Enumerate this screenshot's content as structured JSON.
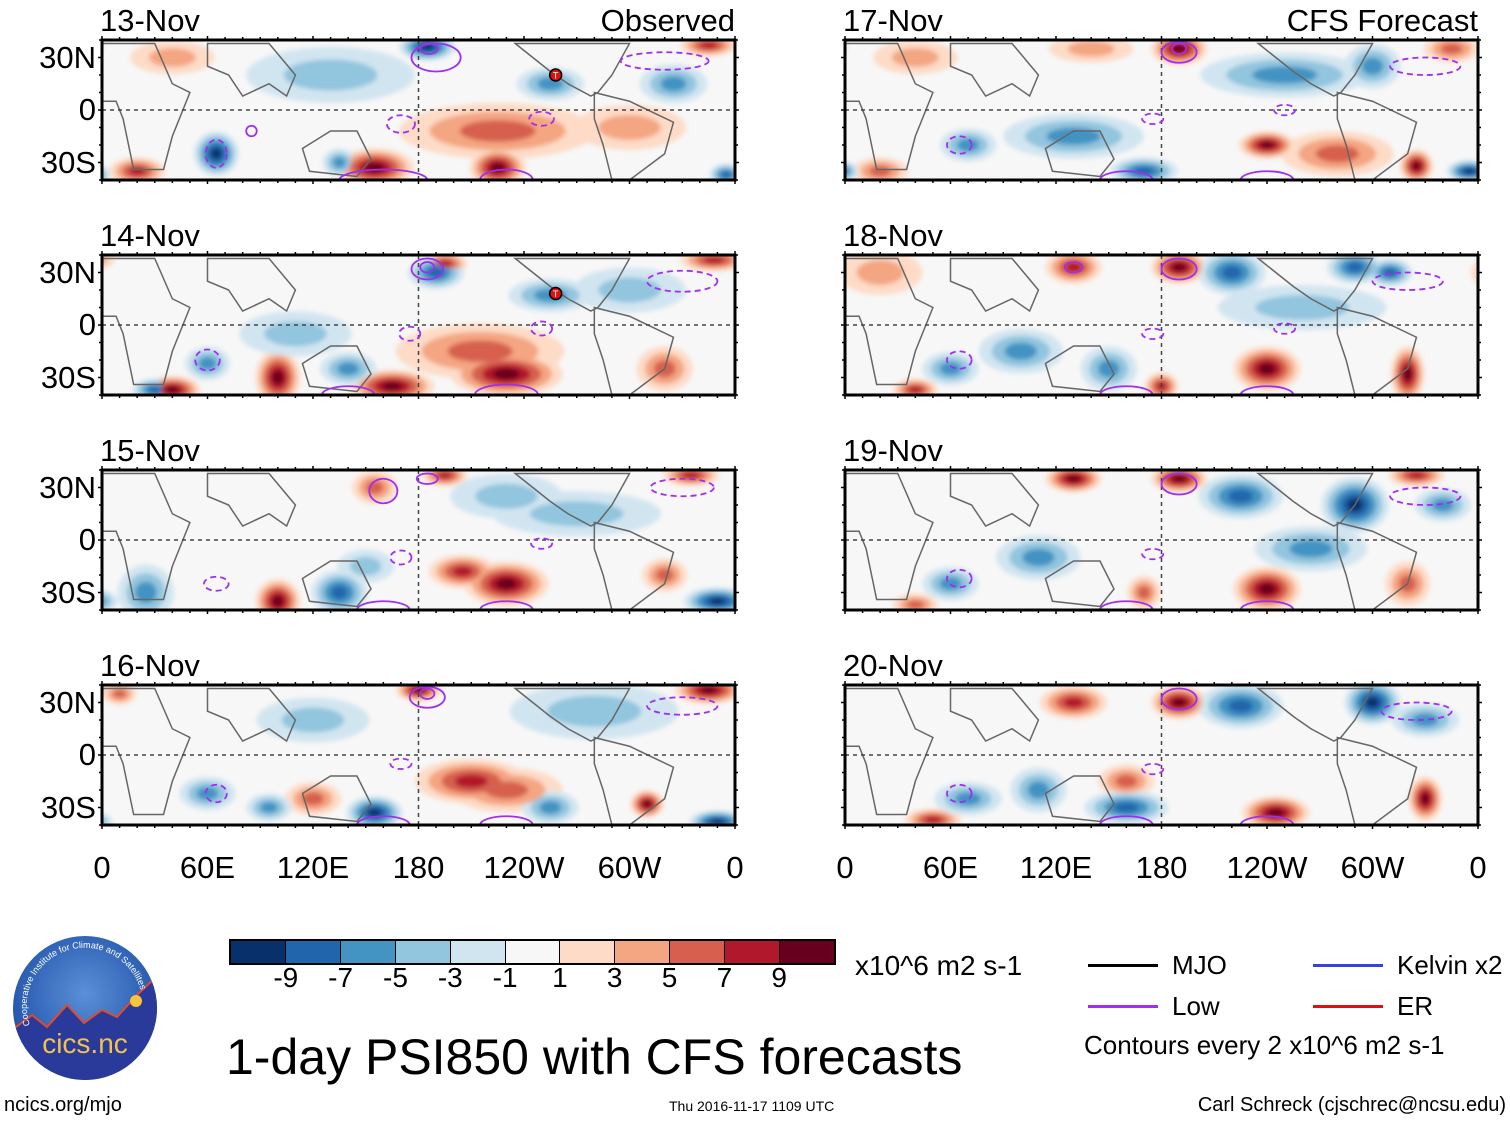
{
  "panels": [
    {
      "title": "13-Nov",
      "label": "Observed",
      "col": 0,
      "row": 0,
      "storm": [
        258,
        20
      ],
      "blobs": [
        [
          155,
          -33,
          9,
          14,
          7
        ],
        [
          225,
          -33,
          9,
          10,
          7
        ],
        [
          225,
          -12,
          5,
          35,
          10
        ],
        [
          300,
          -10,
          3,
          20,
          8
        ],
        [
          345,
          37,
          7,
          10,
          4
        ],
        [
          40,
          30,
          3,
          15,
          6
        ],
        [
          20,
          -35,
          7,
          10,
          5
        ],
        [
          65,
          -25,
          -9,
          8,
          8
        ],
        [
          185,
          36,
          -9,
          10,
          5
        ],
        [
          255,
          15,
          -5,
          12,
          6
        ],
        [
          325,
          15,
          -5,
          12,
          7
        ],
        [
          135,
          -30,
          -5,
          6,
          5
        ],
        [
          130,
          20,
          -3,
          30,
          10
        ],
        [
          355,
          -37,
          -7,
          6,
          4
        ]
      ],
      "contours": [
        [
          190,
          30,
          14,
          8,
          0
        ],
        [
          186,
          35,
          5,
          3,
          0
        ],
        [
          85,
          -12,
          3,
          3,
          0
        ],
        [
          65,
          -25,
          6,
          8,
          1
        ],
        [
          170,
          -8,
          8,
          5,
          1
        ],
        [
          250,
          -5,
          7,
          4,
          1
        ],
        [
          320,
          28,
          25,
          5,
          1
        ],
        [
          160,
          -40,
          25,
          6,
          0
        ],
        [
          230,
          -40,
          15,
          6,
          0
        ]
      ]
    },
    {
      "title": "14-Nov",
      "label": "",
      "col": 0,
      "row": 1,
      "storm": [
        258,
        18
      ],
      "blobs": [
        [
          40,
          -37,
          9,
          10,
          5
        ],
        [
          100,
          -30,
          9,
          8,
          10
        ],
        [
          165,
          -35,
          9,
          15,
          6
        ],
        [
          230,
          -28,
          9,
          20,
          8
        ],
        [
          215,
          -15,
          5,
          30,
          10
        ],
        [
          320,
          -25,
          5,
          10,
          8
        ],
        [
          348,
          37,
          7,
          12,
          4
        ],
        [
          195,
          35,
          7,
          8,
          4
        ],
        [
          60,
          -22,
          -5,
          8,
          6
        ],
        [
          30,
          -37,
          -7,
          8,
          4
        ],
        [
          190,
          30,
          -7,
          10,
          6
        ],
        [
          255,
          17,
          -5,
          15,
          6
        ],
        [
          300,
          20,
          -3,
          20,
          8
        ],
        [
          140,
          -25,
          -5,
          10,
          6
        ],
        [
          110,
          -5,
          -3,
          20,
          8
        ]
      ],
      "contours": [
        [
          185,
          32,
          9,
          6,
          0
        ],
        [
          185,
          33,
          4,
          3,
          0
        ],
        [
          60,
          -20,
          7,
          6,
          1
        ],
        [
          175,
          -5,
          6,
          4,
          1
        ],
        [
          250,
          -2,
          6,
          4,
          1
        ],
        [
          330,
          25,
          20,
          6,
          1
        ],
        [
          140,
          -40,
          15,
          5,
          0
        ],
        [
          230,
          -40,
          18,
          6,
          0
        ]
      ]
    },
    {
      "title": "15-Nov",
      "label": "",
      "col": 0,
      "row": 2,
      "blobs": [
        [
          100,
          -35,
          9,
          8,
          8
        ],
        [
          230,
          -25,
          9,
          15,
          8
        ],
        [
          205,
          -18,
          7,
          12,
          6
        ],
        [
          320,
          -20,
          5,
          8,
          6
        ],
        [
          195,
          37,
          7,
          8,
          4
        ],
        [
          335,
          37,
          7,
          10,
          4
        ],
        [
          155,
          30,
          5,
          8,
          6
        ],
        [
          135,
          -30,
          -7,
          10,
          8
        ],
        [
          350,
          -35,
          -9,
          12,
          5
        ],
        [
          25,
          -30,
          -5,
          10,
          10
        ],
        [
          270,
          15,
          -3,
          30,
          8
        ],
        [
          150,
          -15,
          -3,
          10,
          6
        ],
        [
          230,
          25,
          -3,
          20,
          8
        ]
      ],
      "contours": [
        [
          160,
          28,
          8,
          7,
          0
        ],
        [
          185,
          35,
          6,
          3,
          0
        ],
        [
          65,
          -25,
          7,
          4,
          1
        ],
        [
          170,
          -10,
          6,
          4,
          1
        ],
        [
          250,
          -2,
          6,
          3,
          1
        ],
        [
          330,
          30,
          18,
          5,
          1
        ],
        [
          160,
          -40,
          15,
          5,
          0
        ],
        [
          230,
          -40,
          15,
          5,
          0
        ]
      ]
    },
    {
      "title": "16-Nov",
      "label": "",
      "col": 0,
      "row": 3,
      "blobs": [
        [
          180,
          37,
          9,
          8,
          4
        ],
        [
          345,
          37,
          9,
          12,
          5
        ],
        [
          210,
          -15,
          7,
          20,
          8
        ],
        [
          310,
          -28,
          9,
          6,
          5
        ],
        [
          120,
          -25,
          5,
          10,
          6
        ],
        [
          10,
          35,
          5,
          6,
          4
        ],
        [
          230,
          -20,
          5,
          20,
          8
        ],
        [
          155,
          -33,
          -9,
          10,
          6
        ],
        [
          350,
          -38,
          -9,
          10,
          4
        ],
        [
          60,
          -22,
          -5,
          10,
          6
        ],
        [
          95,
          -30,
          -5,
          8,
          5
        ],
        [
          280,
          25,
          -3,
          30,
          10
        ],
        [
          255,
          -30,
          -5,
          10,
          6
        ],
        [
          120,
          20,
          -3,
          20,
          8
        ]
      ],
      "contours": [
        [
          185,
          33,
          10,
          6,
          0
        ],
        [
          185,
          35,
          4,
          3,
          0
        ],
        [
          65,
          -22,
          6,
          5,
          1
        ],
        [
          170,
          -5,
          6,
          3,
          1
        ],
        [
          330,
          28,
          20,
          5,
          1
        ],
        [
          160,
          -40,
          15,
          5,
          0
        ],
        [
          230,
          -40,
          15,
          5,
          0
        ]
      ]
    },
    {
      "title": "17-Nov",
      "label": "CFS Forecast",
      "col": 1,
      "row": 0,
      "blobs": [
        [
          190,
          35,
          9,
          10,
          6
        ],
        [
          240,
          -20,
          9,
          10,
          5
        ],
        [
          325,
          -32,
          9,
          6,
          6
        ],
        [
          280,
          -25,
          5,
          20,
          8
        ],
        [
          345,
          35,
          5,
          10,
          5
        ],
        [
          40,
          30,
          3,
          15,
          6
        ],
        [
          140,
          35,
          3,
          15,
          5
        ],
        [
          20,
          -35,
          5,
          10,
          5
        ],
        [
          70,
          -20,
          -5,
          10,
          6
        ],
        [
          130,
          -15,
          -5,
          25,
          8
        ],
        [
          250,
          20,
          -5,
          30,
          8
        ],
        [
          170,
          -35,
          -7,
          12,
          5
        ],
        [
          355,
          -35,
          -9,
          8,
          4
        ],
        [
          300,
          25,
          -5,
          10,
          8
        ]
      ],
      "contours": [
        [
          190,
          33,
          10,
          6,
          0
        ],
        [
          190,
          35,
          4,
          3,
          0
        ],
        [
          65,
          -20,
          7,
          5,
          1
        ],
        [
          175,
          -5,
          6,
          3,
          1
        ],
        [
          250,
          0,
          6,
          3,
          1
        ],
        [
          330,
          25,
          20,
          5,
          1
        ],
        [
          160,
          -40,
          15,
          5,
          0
        ],
        [
          240,
          -40,
          15,
          5,
          0
        ]
      ]
    },
    {
      "title": "18-Nov",
      "label": "",
      "col": 1,
      "row": 1,
      "blobs": [
        [
          190,
          33,
          9,
          10,
          6
        ],
        [
          130,
          33,
          7,
          10,
          6
        ],
        [
          240,
          -25,
          9,
          12,
          8
        ],
        [
          320,
          -28,
          9,
          6,
          10
        ],
        [
          40,
          -37,
          7,
          8,
          4
        ],
        [
          180,
          -35,
          7,
          6,
          5
        ],
        [
          20,
          30,
          3,
          15,
          8
        ],
        [
          220,
          30,
          -7,
          12,
          8
        ],
        [
          290,
          33,
          -7,
          10,
          6
        ],
        [
          310,
          30,
          -7,
          8,
          5
        ],
        [
          100,
          -15,
          -5,
          15,
          8
        ],
        [
          150,
          -25,
          -5,
          10,
          8
        ],
        [
          60,
          -25,
          -5,
          10,
          6
        ],
        [
          260,
          10,
          -3,
          30,
          8
        ]
      ],
      "contours": [
        [
          190,
          32,
          10,
          6,
          0
        ],
        [
          130,
          33,
          5,
          3,
          0
        ],
        [
          65,
          -20,
          7,
          5,
          1
        ],
        [
          175,
          -5,
          6,
          3,
          1
        ],
        [
          250,
          -2,
          6,
          3,
          1
        ],
        [
          320,
          25,
          20,
          5,
          1
        ],
        [
          160,
          -40,
          15,
          5,
          0
        ],
        [
          240,
          -40,
          15,
          5,
          0
        ]
      ]
    },
    {
      "title": "19-Nov",
      "label": "",
      "col": 1,
      "row": 2,
      "blobs": [
        [
          130,
          35,
          9,
          10,
          5
        ],
        [
          190,
          35,
          9,
          10,
          5
        ],
        [
          240,
          -28,
          9,
          12,
          8
        ],
        [
          325,
          37,
          7,
          10,
          4
        ],
        [
          170,
          -30,
          5,
          6,
          6
        ],
        [
          40,
          -37,
          5,
          8,
          4
        ],
        [
          320,
          -25,
          5,
          8,
          8
        ],
        [
          290,
          20,
          -9,
          12,
          10
        ],
        [
          225,
          25,
          -7,
          15,
          8
        ],
        [
          265,
          -5,
          -5,
          20,
          8
        ],
        [
          60,
          -25,
          -5,
          10,
          6
        ],
        [
          110,
          -10,
          -5,
          15,
          8
        ],
        [
          340,
          20,
          -5,
          10,
          6
        ]
      ],
      "contours": [
        [
          190,
          32,
          10,
          6,
          0
        ],
        [
          65,
          -22,
          7,
          5,
          1
        ],
        [
          175,
          -8,
          6,
          3,
          1
        ],
        [
          330,
          25,
          20,
          5,
          1
        ],
        [
          160,
          -40,
          15,
          5,
          0
        ],
        [
          240,
          -40,
          15,
          5,
          0
        ]
      ]
    },
    {
      "title": "20-Nov",
      "label": "",
      "col": 1,
      "row": 3,
      "blobs": [
        [
          130,
          30,
          7,
          12,
          6
        ],
        [
          190,
          30,
          9,
          10,
          6
        ],
        [
          245,
          -33,
          9,
          12,
          6
        ],
        [
          330,
          -25,
          9,
          6,
          8
        ],
        [
          50,
          -37,
          7,
          10,
          4
        ],
        [
          160,
          -15,
          5,
          10,
          6
        ],
        [
          300,
          30,
          -9,
          10,
          8
        ],
        [
          225,
          28,
          -7,
          15,
          8
        ],
        [
          330,
          20,
          -5,
          12,
          6
        ],
        [
          70,
          -25,
          -5,
          12,
          6
        ],
        [
          160,
          -30,
          -7,
          15,
          6
        ],
        [
          110,
          -20,
          -5,
          10,
          8
        ]
      ],
      "contours": [
        [
          190,
          32,
          10,
          6,
          0
        ],
        [
          65,
          -22,
          7,
          5,
          1
        ],
        [
          175,
          -8,
          6,
          3,
          1
        ],
        [
          325,
          25,
          20,
          5,
          1
        ],
        [
          160,
          -40,
          15,
          5,
          0
        ],
        [
          240,
          -40,
          15,
          5,
          0
        ]
      ]
    }
  ],
  "lat_labels": [
    "30N",
    "0",
    "30S"
  ],
  "lon_labels": [
    "0",
    "60E",
    "120E",
    "180",
    "120W",
    "60W",
    "0"
  ],
  "colorbar": {
    "colors": [
      "#08306b",
      "#2166ac",
      "#4393c3",
      "#92c5de",
      "#d1e5f0",
      "#f7f7f7",
      "#fddbc7",
      "#f4a582",
      "#d6604d",
      "#b2182b",
      "#67001f"
    ],
    "labels": [
      "-9",
      "-7",
      "-5",
      "-3",
      "-1",
      "1",
      "3",
      "5",
      "7",
      "9"
    ],
    "units": "x10^6 m2 s-1"
  },
  "legend": {
    "items": [
      {
        "label": "MJO",
        "color": "#000000"
      },
      {
        "label": "Kelvin x2",
        "color": "#3344dd"
      },
      {
        "label": "Low",
        "color": "#a02ef0"
      },
      {
        "label": "ER",
        "color": "#dd1111"
      }
    ],
    "note": "Contours every 2 x10^6 m2 s-1"
  },
  "title": "1-day PSI850 with CFS forecasts",
  "logo_text": "cics.nc",
  "logo_ring": "Cooperative Institute for Climate and Satellites",
  "footer": {
    "left": "ncics.org/mjo",
    "center": "Thu 2016-11-17 1109 UTC",
    "right": "Carl Schreck (cjschrec@ncsu.edu)"
  }
}
